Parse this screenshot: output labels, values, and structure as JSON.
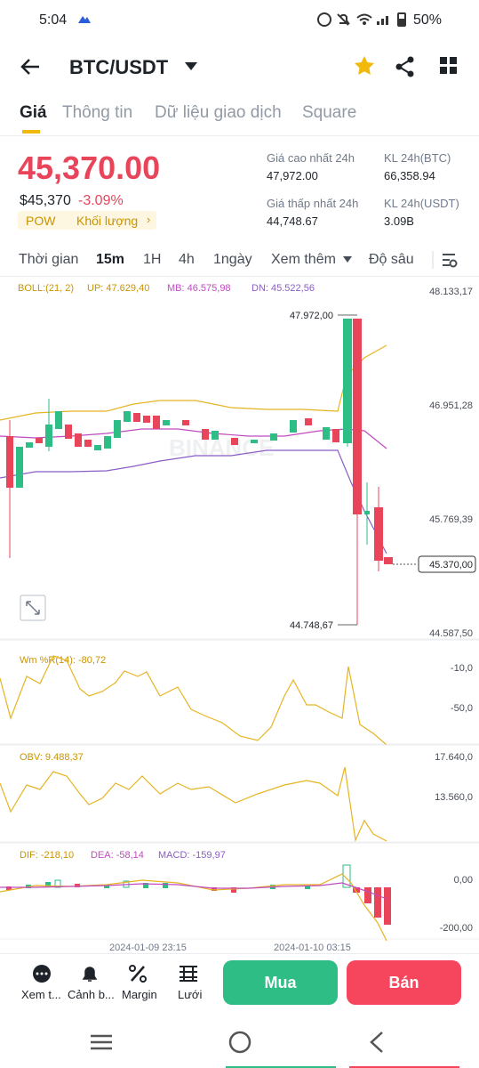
{
  "status": {
    "time": "5:04",
    "battery": "50%"
  },
  "header": {
    "pair": "BTC/USDT"
  },
  "tabs": [
    "Giá",
    "Thông tin",
    "Dữ liệu giao dịch",
    "Square"
  ],
  "price": {
    "last": "45,370.00",
    "usd": "$45,370",
    "change": "-3.09%",
    "tags": [
      "POW",
      "Khối lượng"
    ]
  },
  "stats": [
    {
      "label": "Giá cao nhất 24h",
      "value": "47,972.00"
    },
    {
      "label": "KL 24h(BTC)",
      "value": "66,358.94"
    },
    {
      "label": "Giá thấp nhất 24h",
      "value": "44,748.67"
    },
    {
      "label": "KL 24h(USDT)",
      "value": "3.09B"
    }
  ],
  "intervals": [
    "Thời gian",
    "15m",
    "1H",
    "4h",
    "1ngày",
    "Xem thêm",
    "Độ sâu"
  ],
  "main_chart": {
    "legend": [
      "BOLL:(21, 2)",
      "UP: 47.629,40",
      "MB: 46.575,98",
      "DN: 45.522,56"
    ],
    "axis": [
      "48.133,17",
      "46.951,28",
      "45.769,39",
      "44.587,50"
    ],
    "high": "47.972,00",
    "low": "44.748,67",
    "current": "45.370,00"
  },
  "wr": {
    "legend": "Wm %R(14): -80,72",
    "axis": [
      "-10,0",
      "-50,0"
    ]
  },
  "obv": {
    "legend": "OBV: 9.488,37",
    "axis": [
      "17.640,0",
      "13.560,0"
    ]
  },
  "macd": {
    "legend": [
      "DIF: -218,10",
      "DEA: -58,14",
      "MACD: -159,97"
    ],
    "axis": [
      "0,00",
      "-200,00"
    ]
  },
  "times": [
    "2024-01-09 23:15",
    "2024-01-10 03:15"
  ],
  "bottom": {
    "actions": [
      "Xem t...",
      "Cảnh b...",
      "Margin",
      "Lưới"
    ],
    "buy": "Mua",
    "sell": "Bán"
  }
}
